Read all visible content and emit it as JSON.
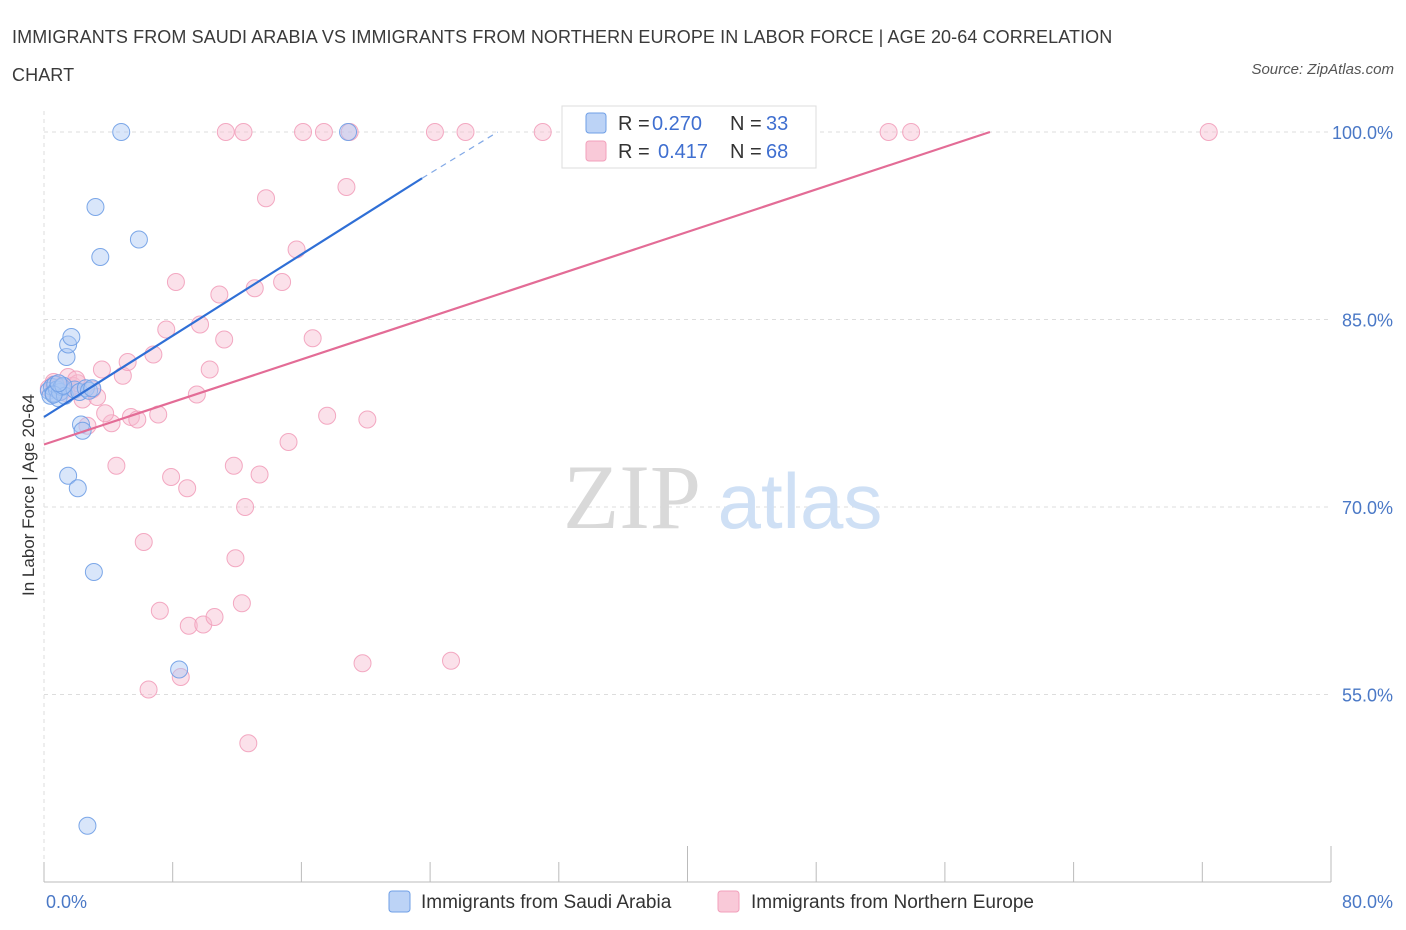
{
  "title": "IMMIGRANTS FROM SAUDI ARABIA VS IMMIGRANTS FROM NORTHERN EUROPE IN LABOR FORCE | AGE 20-64 CORRELATION CHART",
  "source": "Source: ZipAtlas.com",
  "watermark": {
    "zip": "ZIP",
    "atlas": "atlas"
  },
  "colors": {
    "blue": "#6f9fe6",
    "blue_line": "#2f6fd6",
    "pink": "#f2a0bb",
    "pink_line": "#e36c96",
    "axis_label": "#4a78c6",
    "grid": "#dddddd"
  },
  "legend": {
    "rows": [
      {
        "r_label": "R =",
        "r_value": "0.270",
        "n_label": "N =",
        "n_value": "33"
      },
      {
        "r_label": "R =",
        "r_value": "0.417",
        "n_label": "N =",
        "n_value": "68"
      }
    ]
  },
  "chart_data": {
    "type": "scatter",
    "title": "IMMIGRANTS FROM SAUDI ARABIA VS IMMIGRANTS FROM NORTHERN EUROPE IN LABOR FORCE | AGE 20-64 CORRELATION CHART",
    "xlabel": "",
    "ylabel": "In Labor Force | Age 20-64",
    "xlim": [
      0,
      80
    ],
    "ylim": [
      40,
      101.2
    ],
    "x_tick_labels": [
      "0.0%",
      "80.0%"
    ],
    "y_ticks": [
      55,
      70,
      85,
      100
    ],
    "y_tick_labels": [
      "55.0%",
      "70.0%",
      "85.0%",
      "100.0%"
    ],
    "series": [
      {
        "name": "Immigrants from Saudi Arabia",
        "color": "#6f9fe6",
        "r": 0.27,
        "n": 33,
        "trend": {
          "x": [
            0,
            23.5
          ],
          "y": [
            77.2,
            96.3
          ],
          "dash_to": [
            28.2,
            100.0
          ]
        },
        "points": [
          [
            0.3,
            79.3
          ],
          [
            0.4,
            78.9
          ],
          [
            0.5,
            79.6
          ],
          [
            0.6,
            79.1
          ],
          [
            0.7,
            79.8
          ],
          [
            0.8,
            79.4
          ],
          [
            0.9,
            78.7
          ],
          [
            1.0,
            79.2
          ],
          [
            1.1,
            79.6
          ],
          [
            1.3,
            78.9
          ],
          [
            1.4,
            82.0
          ],
          [
            1.5,
            83.0
          ],
          [
            1.7,
            83.6
          ],
          [
            1.9,
            79.4
          ],
          [
            2.2,
            79.2
          ],
          [
            2.3,
            76.6
          ],
          [
            2.4,
            76.1
          ],
          [
            2.6,
            79.5
          ],
          [
            2.8,
            79.3
          ],
          [
            3.0,
            79.5
          ],
          [
            1.5,
            72.5
          ],
          [
            2.1,
            71.5
          ],
          [
            3.1,
            64.8
          ],
          [
            3.2,
            94.0
          ],
          [
            3.5,
            90.0
          ],
          [
            4.8,
            100.0
          ],
          [
            5.9,
            91.4
          ],
          [
            8.4,
            57.0
          ],
          [
            18.9,
            100.0
          ],
          [
            2.7,
            44.5
          ],
          [
            0.6,
            79.0
          ],
          [
            1.2,
            79.7
          ],
          [
            0.9,
            79.9
          ]
        ]
      },
      {
        "name": "Immigrants from Northern Europe",
        "color": "#f2a0bb",
        "r": 0.417,
        "n": 68,
        "trend": {
          "x": [
            0,
            58.8
          ],
          "y": [
            75.0,
            100.0
          ]
        },
        "points": [
          [
            0.3,
            79.5
          ],
          [
            0.6,
            80.0
          ],
          [
            0.9,
            79.6
          ],
          [
            1.2,
            79.3
          ],
          [
            1.5,
            80.4
          ],
          [
            1.8,
            79.7
          ],
          [
            2.1,
            79.9
          ],
          [
            2.4,
            78.6
          ],
          [
            2.7,
            76.5
          ],
          [
            3.0,
            79.4
          ],
          [
            3.3,
            78.8
          ],
          [
            3.6,
            81.0
          ],
          [
            4.2,
            76.7
          ],
          [
            4.5,
            73.3
          ],
          [
            4.9,
            80.5
          ],
          [
            5.2,
            81.6
          ],
          [
            5.4,
            77.2
          ],
          [
            5.8,
            77.0
          ],
          [
            6.2,
            67.2
          ],
          [
            6.5,
            55.4
          ],
          [
            6.8,
            82.2
          ],
          [
            7.1,
            77.4
          ],
          [
            7.2,
            61.7
          ],
          [
            7.6,
            84.2
          ],
          [
            7.9,
            72.4
          ],
          [
            8.2,
            88.0
          ],
          [
            8.5,
            56.4
          ],
          [
            8.9,
            71.5
          ],
          [
            9.0,
            60.5
          ],
          [
            9.5,
            79.0
          ],
          [
            9.7,
            84.6
          ],
          [
            9.9,
            60.6
          ],
          [
            10.3,
            81.0
          ],
          [
            10.6,
            61.2
          ],
          [
            10.9,
            87.0
          ],
          [
            11.2,
            83.4
          ],
          [
            11.8,
            73.3
          ],
          [
            11.9,
            65.9
          ],
          [
            12.3,
            62.3
          ],
          [
            12.5,
            70.0
          ],
          [
            12.7,
            51.1
          ],
          [
            13.1,
            87.5
          ],
          [
            13.4,
            72.6
          ],
          [
            13.8,
            94.7
          ],
          [
            14.8,
            88.0
          ],
          [
            15.2,
            75.2
          ],
          [
            15.7,
            90.6
          ],
          [
            16.7,
            83.5
          ],
          [
            17.6,
            77.3
          ],
          [
            18.8,
            95.6
          ],
          [
            19.8,
            57.5
          ],
          [
            20.1,
            77.0
          ],
          [
            25.3,
            57.7
          ],
          [
            11.3,
            100.0
          ],
          [
            12.4,
            100.0
          ],
          [
            16.1,
            100.0
          ],
          [
            17.4,
            100.0
          ],
          [
            19.0,
            100.0
          ],
          [
            24.3,
            100.0
          ],
          [
            26.2,
            100.0
          ],
          [
            31.0,
            100.0
          ],
          [
            52.5,
            100.0
          ],
          [
            53.9,
            100.0
          ],
          [
            72.4,
            100.0
          ],
          [
            0.6,
            79.8
          ],
          [
            1.4,
            79.1
          ],
          [
            2.0,
            80.2
          ],
          [
            3.8,
            77.5
          ]
        ]
      }
    ]
  },
  "bottom_legend": [
    {
      "label": "Immigrants from Saudi Arabia"
    },
    {
      "label": "Immigrants from Northern Europe"
    }
  ]
}
